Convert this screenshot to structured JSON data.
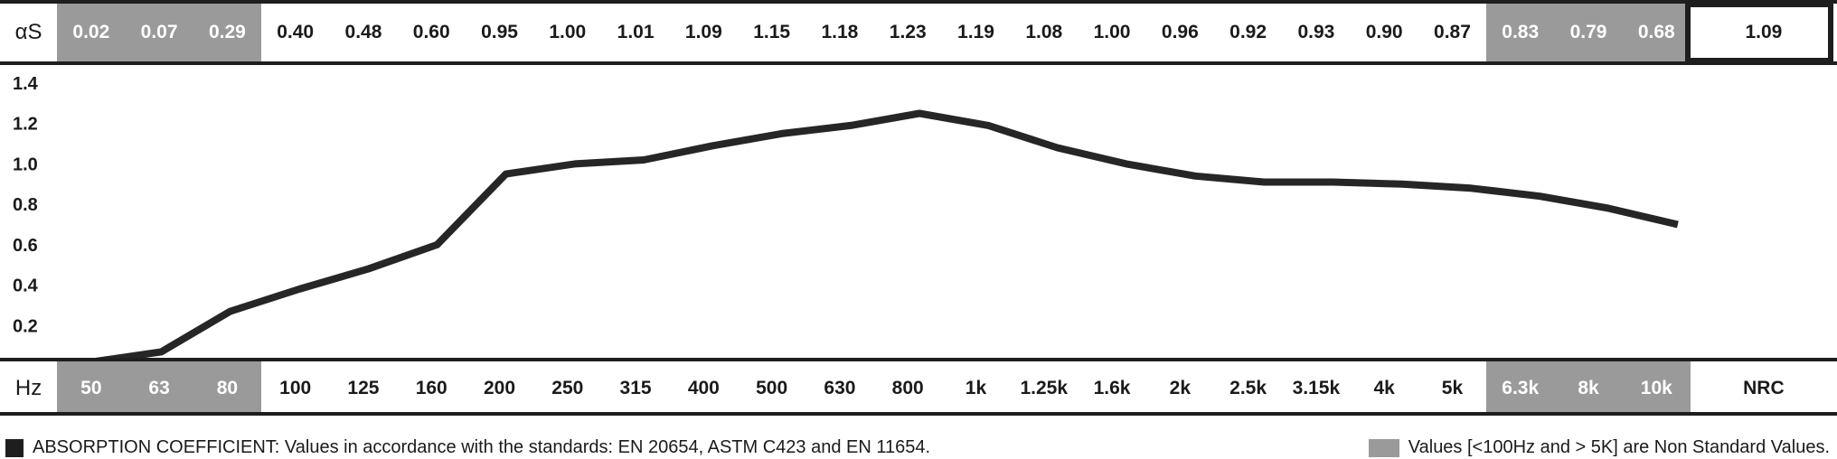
{
  "header": {
    "top_label": "αS",
    "bottom_label": "Hz",
    "nrc_label": "NRC",
    "nrc_value": "1.09"
  },
  "chart_data": {
    "type": "line",
    "categories": [
      "50",
      "63",
      "80",
      "100",
      "125",
      "160",
      "200",
      "250",
      "315",
      "400",
      "500",
      "630",
      "800",
      "1k",
      "1.25k",
      "1.6k",
      "2k",
      "2.5k",
      "3.15k",
      "4k",
      "5k",
      "6.3k",
      "8k",
      "10k"
    ],
    "value_labels": [
      "0.02",
      "0.07",
      "0.29",
      "0.40",
      "0.48",
      "0.60",
      "0.95",
      "1.00",
      "1.01",
      "1.09",
      "1.15",
      "1.18",
      "1.23",
      "1.19",
      "1.08",
      "1.00",
      "0.96",
      "0.92",
      "0.93",
      "0.90",
      "0.87",
      "0.83",
      "0.79",
      "0.68"
    ],
    "values": [
      0.02,
      0.07,
      0.29,
      0.4,
      0.48,
      0.6,
      0.95,
      1.0,
      1.01,
      1.09,
      1.15,
      1.18,
      1.23,
      1.19,
      1.08,
      1.0,
      0.96,
      0.92,
      0.93,
      0.9,
      0.87,
      0.83,
      0.79,
      0.68
    ],
    "plotted_values": [
      0.02,
      0.07,
      0.27,
      0.38,
      0.48,
      0.6,
      0.95,
      1.0,
      1.02,
      1.09,
      1.15,
      1.19,
      1.25,
      1.19,
      1.08,
      1.0,
      0.94,
      0.91,
      0.91,
      0.9,
      0.88,
      0.84,
      0.78,
      0.7
    ],
    "non_standard": [
      true,
      true,
      true,
      false,
      false,
      false,
      false,
      false,
      false,
      false,
      false,
      false,
      false,
      false,
      false,
      false,
      false,
      false,
      false,
      false,
      false,
      true,
      true,
      true
    ],
    "yticks": [
      "0.2",
      "0.4",
      "0.6",
      "0.8",
      "1.0",
      "1.2",
      "1.4"
    ],
    "ylim": [
      0,
      1.4
    ],
    "grid": false,
    "title": "",
    "xlabel": "",
    "ylabel": ""
  },
  "colors": {
    "line": "#262626",
    "shade": "#9a9a9a",
    "rule": "#1e1e1e"
  },
  "footer": {
    "left_text": "ABSORPTION COEFFICIENT: Values in accordance with the standards: EN 20654, ASTM C423 and EN 11654.",
    "right_text": "Values [<100Hz and > 5K] are Non Standard Values."
  }
}
